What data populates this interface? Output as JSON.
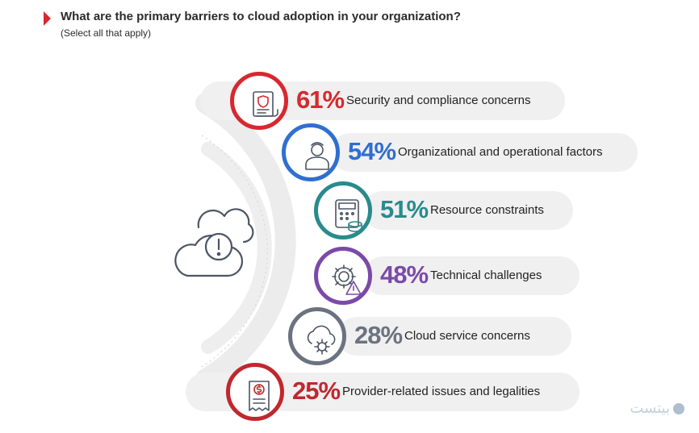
{
  "title": "What are the primary barriers to cloud adoption in your organization?",
  "subtitle": "(Select all that apply)",
  "watermark": "بیتست",
  "chart_data": {
    "type": "bar",
    "title": "What are the primary barriers to cloud adoption in your organization?",
    "subtitle": "(Select all that apply)",
    "unit": "%",
    "categories": [
      "Security and compliance concerns",
      "Organizational and operational factors",
      "Resource constraints",
      "Technical challenges",
      "Cloud service concerns",
      "Provider-related issues and legalities"
    ],
    "values": [
      61,
      54,
      51,
      48,
      28,
      25
    ],
    "value_labels": [
      "61%",
      "54%",
      "51%",
      "48%",
      "28%",
      "25%"
    ],
    "colors": [
      "#d7282f",
      "#2f6fd0",
      "#2a8a8c",
      "#7b4aa8",
      "#6b7280",
      "#c0282f"
    ],
    "icons": [
      "document-shield-icon",
      "person-icon",
      "calculator-coins-icon",
      "gear-warning-icon",
      "cloud-gear-icon",
      "receipt-dollar-icon"
    ]
  }
}
